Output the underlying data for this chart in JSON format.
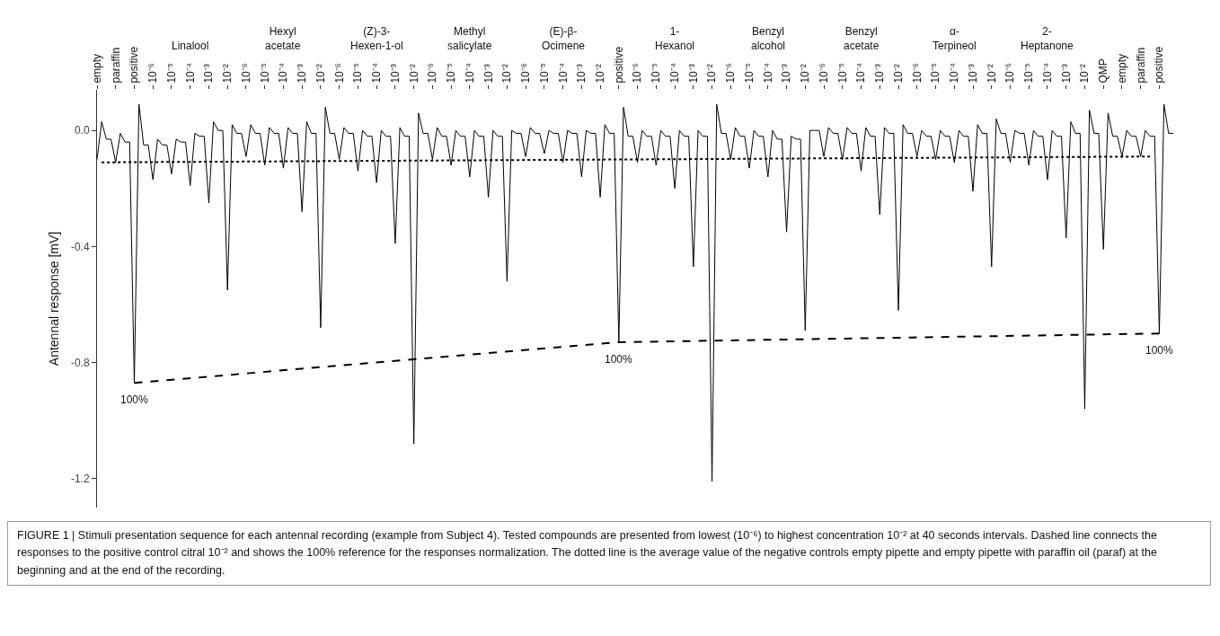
{
  "chart_data": {
    "type": "line",
    "ylabel": "Antennal response [mV]",
    "categories": [
      "empty",
      null,
      null,
      null,
      "paraffin",
      null,
      null,
      null,
      "positive",
      null,
      null,
      null,
      "10⁻⁶",
      null,
      null,
      null,
      "10⁻⁵",
      null,
      null,
      null,
      "10⁻⁴",
      null,
      null,
      null,
      "10⁻³",
      null,
      null,
      null,
      "10⁻²",
      null,
      null,
      null,
      "10⁻⁶",
      null,
      null,
      null,
      "10⁻⁵",
      null,
      null,
      null,
      "10⁻⁴",
      null,
      null,
      null,
      "10⁻³",
      null,
      null,
      null,
      "10⁻²",
      null,
      null,
      null,
      "10⁻⁶",
      null,
      null,
      null,
      "10⁻⁵",
      null,
      null,
      null,
      "10⁻⁴",
      null,
      null,
      null,
      "10⁻³",
      null,
      null,
      null,
      "10⁻²",
      null,
      null,
      null,
      "10⁻⁶",
      null,
      null,
      null,
      "10⁻⁵",
      null,
      null,
      null,
      "10⁻⁴",
      null,
      null,
      null,
      "10⁻³",
      null,
      null,
      null,
      "10⁻²",
      null,
      null,
      null,
      "10⁻⁶",
      null,
      null,
      null,
      "10⁻⁵",
      null,
      null,
      null,
      "10⁻⁴",
      null,
      null,
      null,
      "10⁻³",
      null,
      null,
      null,
      "10⁻²",
      null,
      null,
      null,
      "positive",
      null,
      null,
      null,
      "10⁻⁶",
      null,
      null,
      null,
      "10⁻⁵",
      null,
      null,
      null,
      "10⁻⁴",
      null,
      null,
      null,
      "10⁻³",
      null,
      null,
      null,
      "10⁻²",
      null,
      null,
      null,
      "10⁻⁶",
      null,
      null,
      null,
      "10⁻⁵",
      null,
      null,
      null,
      "10⁻⁴",
      null,
      null,
      null,
      "10⁻³",
      null,
      null,
      null,
      "10⁻²",
      null,
      null,
      null,
      "10⁻⁶",
      null,
      null,
      null,
      "10⁻⁵",
      null,
      null,
      null,
      "10⁻⁴",
      null,
      null,
      null,
      "10⁻³",
      null,
      null,
      null,
      "10⁻²",
      null,
      null,
      null,
      "10⁻⁶",
      null,
      null,
      null,
      "10⁻⁵",
      null,
      null,
      null,
      "10⁻⁴",
      null,
      null,
      null,
      "10⁻³",
      null,
      null,
      null,
      "10⁻²",
      null,
      null,
      null,
      "10⁻⁶",
      null,
      null,
      null,
      "10⁻⁵",
      null,
      null,
      null,
      "10⁻⁴",
      null,
      null,
      null,
      "10⁻³",
      null,
      null,
      null,
      "10⁻²",
      null,
      null,
      null,
      "QMP",
      null,
      null,
      null,
      "empty",
      null,
      null,
      null,
      "paraffin",
      null,
      null,
      null,
      "positive",
      null,
      null,
      null
    ],
    "ylim": [
      -1.3,
      0.14
    ],
    "yticks": [
      {
        "value": 0,
        "label": "0.0"
      },
      {
        "value": -0.4,
        "label": "-0.4"
      },
      {
        "value": -0.8,
        "label": "-0.8"
      },
      {
        "value": -1.2,
        "label": "-1.2"
      }
    ],
    "grid": false,
    "marker": "none",
    "series": [
      {
        "color": "#000000",
        "line_style": "solid",
        "values": [
          -0.1,
          0.03,
          -0.03,
          -0.03,
          -0.11,
          -0.01,
          -0.04,
          -0.04,
          -0.87,
          0.09,
          -0.05,
          -0.05,
          -0.17,
          -0.03,
          -0.05,
          -0.05,
          -0.15,
          -0.03,
          -0.04,
          -0.04,
          -0.19,
          -0.01,
          -0.02,
          -0.02,
          -0.25,
          0.03,
          0,
          0,
          -0.55,
          0.02,
          -0.01,
          -0.01,
          -0.09,
          0.02,
          -0.01,
          -0.01,
          -0.12,
          0.01,
          -0.01,
          -0.01,
          -0.13,
          0.01,
          -0.01,
          -0.01,
          -0.28,
          0.03,
          -0.01,
          -0.01,
          -0.68,
          0.08,
          -0.01,
          -0.01,
          -0.1,
          0.01,
          -0.01,
          -0.01,
          -0.14,
          0,
          -0.02,
          -0.02,
          -0.18,
          0,
          -0.02,
          -0.02,
          -0.39,
          0.01,
          -0.02,
          -0.02,
          -1.08,
          0.06,
          -0.01,
          -0.01,
          -0.1,
          0.01,
          -0.02,
          -0.02,
          -0.12,
          0,
          -0.02,
          -0.02,
          -0.16,
          0,
          -0.02,
          -0.02,
          -0.23,
          0,
          -0.02,
          -0.02,
          -0.52,
          0,
          -0.01,
          -0.01,
          -0.09,
          0.01,
          -0.01,
          -0.01,
          -0.08,
          0,
          -0.01,
          -0.01,
          -0.11,
          0,
          -0.01,
          -0.01,
          -0.16,
          0,
          -0.01,
          -0.01,
          -0.23,
          0.02,
          -0.01,
          -0.01,
          -0.73,
          0.08,
          -0.02,
          -0.02,
          -0.11,
          0,
          -0.02,
          -0.02,
          -0.12,
          0,
          -0.02,
          -0.02,
          -0.2,
          0,
          -0.02,
          -0.02,
          -0.47,
          0,
          -0.02,
          -0.02,
          -1.21,
          0.09,
          -0.01,
          -0.01,
          -0.1,
          0.01,
          -0.02,
          -0.02,
          -0.13,
          0,
          -0.02,
          -0.02,
          -0.16,
          0,
          -0.03,
          -0.03,
          -0.35,
          -0.02,
          -0.03,
          -0.03,
          -0.69,
          0,
          0,
          0,
          -0.09,
          0.01,
          -0.01,
          -0.01,
          -0.1,
          0.01,
          -0.01,
          -0.01,
          -0.14,
          0.01,
          -0.02,
          -0.02,
          -0.29,
          0.01,
          -0.01,
          -0.01,
          -0.62,
          0.02,
          -0.01,
          -0.01,
          -0.09,
          0,
          -0.02,
          -0.02,
          -0.1,
          0,
          -0.02,
          -0.02,
          -0.11,
          0,
          -0.02,
          -0.02,
          -0.21,
          0.02,
          -0.01,
          -0.01,
          -0.47,
          0.04,
          -0.01,
          -0.01,
          -0.11,
          0,
          -0.01,
          -0.01,
          -0.12,
          0,
          -0.02,
          -0.02,
          -0.17,
          0,
          -0.02,
          -0.02,
          -0.37,
          0.03,
          -0.01,
          -0.01,
          -0.96,
          0.07,
          -0.01,
          -0.01,
          -0.41,
          0.06,
          -0.02,
          -0.02,
          -0.09,
          0,
          -0.02,
          -0.02,
          -0.09,
          0,
          -0.02,
          -0.02,
          -0.7,
          0.09,
          -0.01,
          -0.01
        ]
      },
      {
        "color": "#000000",
        "line_style": "dashed",
        "values": [
          null,
          null,
          null,
          null,
          null,
          null,
          null,
          null,
          -0.87,
          null,
          null,
          null,
          null,
          null,
          null,
          null,
          null,
          null,
          null,
          null,
          null,
          null,
          null,
          null,
          null,
          null,
          null,
          null,
          null,
          null,
          null,
          null,
          null,
          null,
          null,
          null,
          null,
          null,
          null,
          null,
          null,
          null,
          null,
          null,
          null,
          null,
          null,
          null,
          null,
          null,
          null,
          null,
          null,
          null,
          null,
          null,
          null,
          null,
          null,
          null,
          null,
          null,
          null,
          null,
          null,
          null,
          null,
          null,
          null,
          null,
          null,
          null,
          null,
          null,
          null,
          null,
          null,
          null,
          null,
          null,
          null,
          null,
          null,
          null,
          null,
          null,
          null,
          null,
          null,
          null,
          null,
          null,
          null,
          null,
          null,
          null,
          null,
          null,
          null,
          null,
          null,
          null,
          null,
          null,
          null,
          null,
          null,
          null,
          null,
          null,
          null,
          null,
          -0.73,
          null,
          null,
          null,
          null,
          null,
          null,
          null,
          null,
          null,
          null,
          null,
          null,
          null,
          null,
          null,
          null,
          null,
          null,
          null,
          null,
          null,
          null,
          null,
          null,
          null,
          null,
          null,
          null,
          null,
          null,
          null,
          null,
          null,
          null,
          null,
          null,
          null,
          null,
          null,
          null,
          null,
          null,
          null,
          null,
          null,
          null,
          null,
          null,
          null,
          null,
          null,
          null,
          null,
          null,
          null,
          null,
          null,
          null,
          null,
          null,
          null,
          null,
          null,
          null,
          null,
          null,
          null,
          null,
          null,
          null,
          null,
          null,
          null,
          null,
          null,
          null,
          null,
          null,
          null,
          null,
          null,
          null,
          null,
          null,
          null,
          null,
          null,
          null,
          null,
          null,
          null,
          null,
          null,
          null,
          null,
          null,
          null,
          null,
          null,
          null,
          null,
          null,
          null,
          null,
          null,
          null,
          null,
          null,
          null,
          null,
          null,
          null,
          null,
          null,
          null,
          -0.7,
          null,
          null,
          null
        ]
      },
      {
        "color": "#000000",
        "line_style": "dotted",
        "values": [
          null,
          -0.11,
          null,
          null,
          null,
          null,
          null,
          null,
          null,
          null,
          null,
          null,
          null,
          null,
          null,
          null,
          null,
          null,
          null,
          null,
          null,
          null,
          null,
          null,
          null,
          null,
          null,
          null,
          null,
          null,
          null,
          null,
          null,
          null,
          null,
          null,
          null,
          null,
          null,
          null,
          null,
          null,
          null,
          null,
          null,
          null,
          null,
          null,
          null,
          null,
          null,
          null,
          null,
          null,
          null,
          null,
          null,
          null,
          null,
          null,
          null,
          null,
          null,
          null,
          null,
          null,
          null,
          null,
          null,
          null,
          null,
          null,
          null,
          null,
          null,
          null,
          null,
          null,
          null,
          null,
          null,
          null,
          null,
          null,
          null,
          null,
          null,
          null,
          null,
          null,
          null,
          null,
          null,
          null,
          null,
          null,
          null,
          null,
          null,
          null,
          null,
          null,
          null,
          null,
          null,
          null,
          null,
          null,
          null,
          null,
          null,
          null,
          null,
          null,
          null,
          null,
          null,
          null,
          null,
          null,
          null,
          null,
          null,
          null,
          null,
          null,
          null,
          null,
          null,
          null,
          null,
          null,
          null,
          null,
          null,
          null,
          null,
          null,
          null,
          null,
          null,
          null,
          null,
          null,
          null,
          null,
          null,
          null,
          null,
          null,
          null,
          null,
          null,
          null,
          null,
          null,
          null,
          null,
          null,
          null,
          null,
          null,
          null,
          null,
          null,
          null,
          null,
          null,
          null,
          null,
          null,
          null,
          null,
          null,
          null,
          null,
          null,
          null,
          null,
          null,
          null,
          null,
          null,
          null,
          null,
          null,
          null,
          null,
          null,
          null,
          null,
          null,
          null,
          null,
          null,
          null,
          null,
          null,
          null,
          null,
          null,
          null,
          null,
          null,
          null,
          null,
          null,
          null,
          null,
          null,
          null,
          null,
          null,
          null,
          null,
          null,
          null,
          null,
          null,
          null,
          null,
          null,
          null,
          null,
          null,
          null,
          -0.09,
          null,
          null,
          null,
          null,
          null
        ]
      }
    ],
    "annotations": [
      "Linalool",
      "Hexyl\nacetate",
      "(Z)-3-\nHexen-1-ol",
      "Methyl\nsalicylate",
      "(E)-β-\nOcimene",
      "1-\nHexanol",
      "Benzyl\nalcohol",
      "Benzyl\nacetate",
      "α-\nTerpineol",
      "2-\nHeptanone",
      "100%",
      "100%",
      "100%",
      "FIGURE 1 | Stimuli presentation sequence for each antennal recording (example from Subject 4). Tested compounds are presented from lowest (10⁻⁶) to highest concentration 10⁻² at 40 seconds intervals. Dashed line connects the responses to the positive control citral 10⁻² and shows the 100% reference for the responses normalization. The dotted line is the average value of the negative controls empty pipette and empty pipette with paraffin oil (paraf) at the beginning and at the end of the recording."
    ]
  }
}
